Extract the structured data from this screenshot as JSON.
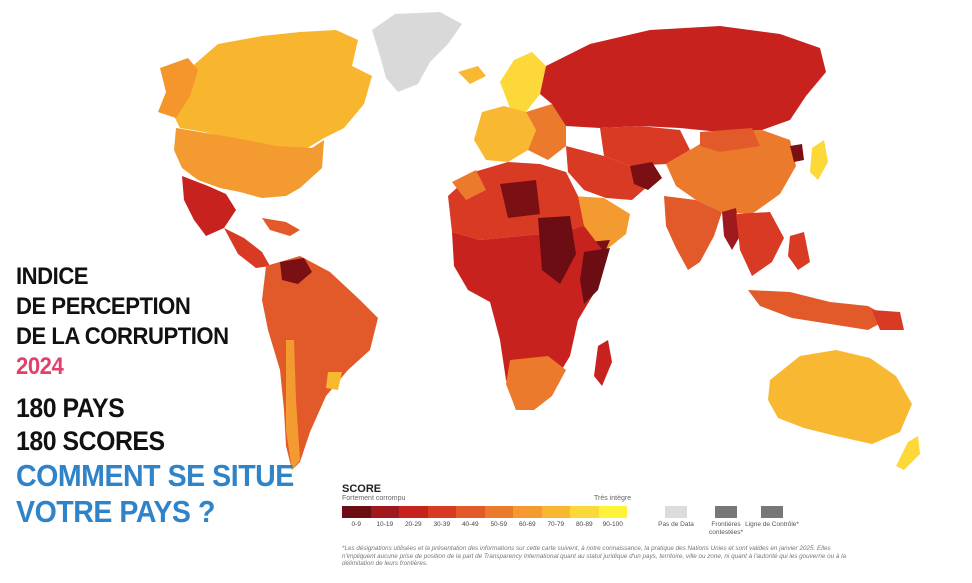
{
  "title": {
    "line1": "INDICE",
    "line2": "DE PERCEPTION",
    "line3": "DE LA CORRUPTION",
    "year": "2024",
    "count1": "180 PAYS",
    "count2": "180 SCORES",
    "cta1": "COMMENT SE SITUE",
    "cta2": "VOTRE PAYS ?"
  },
  "legend": {
    "title": "SCORE",
    "low_label": "Fortement corrompu",
    "high_label": "Très intègre",
    "ranges": [
      "0-9",
      "10-19",
      "20-29",
      "30-39",
      "40-49",
      "50-59",
      "60-69",
      "70-79",
      "80-89",
      "90-100"
    ],
    "colors": [
      "#6b0d12",
      "#9e1a1e",
      "#c8221f",
      "#d83a24",
      "#e35a2a",
      "#ec7a2c",
      "#f39a30",
      "#f8b832",
      "#fcd838",
      "#fff23a"
    ],
    "no_data": "Pas de Data",
    "no_data_color": "#dcdcdc",
    "disputed": "Frontières contestées*",
    "control_line": "Ligne de Contrôle*",
    "border_color": "#777777",
    "note": "*Les désignations utilisées et la présentation des informations sur cette carte suivent, à notre connaissance, la pratique des Nations Unies et sont valides en janvier 2025. Elles n'impliquent aucune prise de position de la part de Transparency International quant au statut juridique d'un pays, territoire, ville ou zone, ni quant à l'autorité qui les gouverne ou à la délimitation de leurs frontières."
  },
  "colors": {
    "highlight_year": "#e0406a",
    "cta": "#2e83c9",
    "ocean": "#ffffff"
  }
}
